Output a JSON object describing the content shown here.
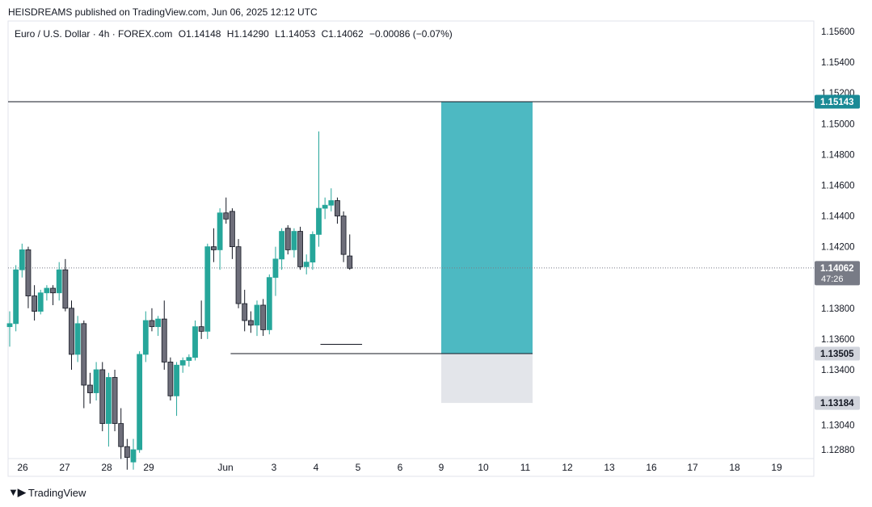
{
  "header": {
    "published": "HEISDREAMS published on TradingView.com, Jun 06, 2025 12:12 UTC"
  },
  "symbol": {
    "name": "Euro / U.S. Dollar · 4h · FOREX.com",
    "open": "O1.14148",
    "high": "H1.14290",
    "low": "L1.14053",
    "close": "C1.14062",
    "change": "−0.00086 (−0.07%)"
  },
  "footer": {
    "brand": "TradingView"
  },
  "colors": {
    "up": "#26a69a",
    "down": "#6e6e7a",
    "target": "#26a9b4",
    "stop": "#d1d4dc",
    "current": "#787b86"
  },
  "chart_data": {
    "type": "candlestick",
    "timeframe": "4h",
    "ylim": [
      1.128,
      1.1565
    ],
    "y_ticks": [
      "1.15600",
      "1.15400",
      "1.15200",
      "1.15000",
      "1.14800",
      "1.14600",
      "1.14400",
      "1.14200",
      "1.13800",
      "1.13600",
      "1.13400",
      "1.13040",
      "1.12880"
    ],
    "x_ticks": [
      "26",
      "27",
      "28",
      "29",
      "Jun",
      "3",
      "4",
      "5",
      "6",
      "9",
      "10",
      "11",
      "12",
      "13",
      "16",
      "17",
      "18",
      "19"
    ],
    "price_labels": {
      "target": "1.15143",
      "current": "1.14062",
      "countdown": "47:26",
      "entry": "1.13505",
      "stop": "1.13184"
    },
    "levels": {
      "target": 1.15143,
      "entry": 1.13505,
      "stop": 1.13184,
      "current": 1.14062,
      "low_marker": 1.13565
    },
    "candles": [
      [
        1.1368,
        1.1378,
        1.1355,
        1.137
      ],
      [
        1.137,
        1.1408,
        1.1365,
        1.1405
      ],
      [
        1.1405,
        1.1422,
        1.14,
        1.1418
      ],
      [
        1.1418,
        1.142,
        1.138,
        1.1388
      ],
      [
        1.1388,
        1.1395,
        1.1372,
        1.1378
      ],
      [
        1.1378,
        1.1392,
        1.1376,
        1.139
      ],
      [
        1.139,
        1.1395,
        1.1385,
        1.1393
      ],
      [
        1.1393,
        1.1395,
        1.1382,
        1.139
      ],
      [
        1.139,
        1.141,
        1.1385,
        1.1405
      ],
      [
        1.1405,
        1.1412,
        1.1378,
        1.138
      ],
      [
        1.138,
        1.1385,
        1.134,
        1.135
      ],
      [
        1.135,
        1.1375,
        1.1345,
        1.137
      ],
      [
        1.137,
        1.1372,
        1.1315,
        1.133
      ],
      [
        1.133,
        1.1338,
        1.1318,
        1.1325
      ],
      [
        1.1325,
        1.1345,
        1.132,
        1.134
      ],
      [
        1.134,
        1.1345,
        1.13,
        1.1305
      ],
      [
        1.1305,
        1.1338,
        1.129,
        1.1335
      ],
      [
        1.1335,
        1.134,
        1.13,
        1.1305
      ],
      [
        1.1305,
        1.1315,
        1.1282,
        1.129
      ],
      [
        1.129,
        1.1295,
        1.1275,
        1.1283
      ],
      [
        1.128,
        1.1295,
        1.1275,
        1.1288
      ],
      [
        1.1288,
        1.1352,
        1.1286,
        1.135
      ],
      [
        1.135,
        1.1378,
        1.1345,
        1.1372
      ],
      [
        1.1372,
        1.138,
        1.1365,
        1.1368
      ],
      [
        1.1368,
        1.1375,
        1.1362,
        1.1373
      ],
      [
        1.1373,
        1.1385,
        1.134,
        1.1345
      ],
      [
        1.1345,
        1.1348,
        1.132,
        1.1323
      ],
      [
        1.1323,
        1.1345,
        1.131,
        1.1343
      ],
      [
        1.1343,
        1.1348,
        1.1338,
        1.1346
      ],
      [
        1.1346,
        1.135,
        1.1342,
        1.1348
      ],
      [
        1.1348,
        1.1372,
        1.1346,
        1.1368
      ],
      [
        1.1368,
        1.1385,
        1.136,
        1.1365
      ],
      [
        1.1365,
        1.1422,
        1.136,
        1.142
      ],
      [
        1.142,
        1.1432,
        1.141,
        1.1418
      ],
      [
        1.1418,
        1.1445,
        1.1405,
        1.1442
      ],
      [
        1.1442,
        1.1452,
        1.1435,
        1.1438
      ],
      [
        1.1443,
        1.1445,
        1.1412,
        1.142
      ],
      [
        1.142,
        1.1425,
        1.138,
        1.1383
      ],
      [
        1.1383,
        1.1392,
        1.1365,
        1.1372
      ],
      [
        1.1372,
        1.1378,
        1.1364,
        1.1369
      ],
      [
        1.1369,
        1.1385,
        1.1362,
        1.1382
      ],
      [
        1.1382,
        1.1386,
        1.1362,
        1.1366
      ],
      [
        1.1366,
        1.1402,
        1.1363,
        1.14
      ],
      [
        1.14,
        1.142,
        1.1388,
        1.1412
      ],
      [
        1.1412,
        1.1432,
        1.1405,
        1.143
      ],
      [
        1.1432,
        1.1434,
        1.1415,
        1.1418
      ],
      [
        1.1418,
        1.1432,
        1.1413,
        1.143
      ],
      [
        1.143,
        1.1433,
        1.1405,
        1.1407
      ],
      [
        1.1407,
        1.1415,
        1.1402,
        1.141
      ],
      [
        1.141,
        1.143,
        1.1405,
        1.1428
      ],
      [
        1.1428,
        1.1495,
        1.142,
        1.1445
      ],
      [
        1.1445,
        1.1452,
        1.1438,
        1.1447
      ],
      [
        1.1447,
        1.1458,
        1.1443,
        1.145
      ],
      [
        1.145,
        1.1452,
        1.1435,
        1.144
      ],
      [
        1.144,
        1.1443,
        1.141,
        1.1415
      ],
      [
        1.1414,
        1.1428,
        1.1405,
        1.1406
      ]
    ]
  }
}
